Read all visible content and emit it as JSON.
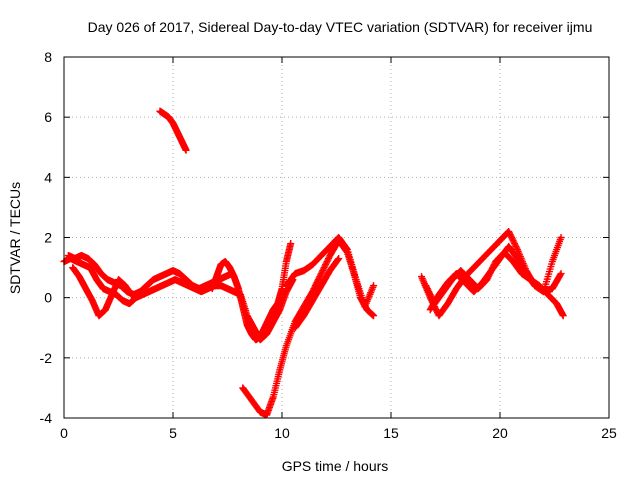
{
  "chart_data": {
    "type": "scatter",
    "title": "Day 026 of 2017, Sidereal Day-to-day VTEC variation (SDTVAR) for receiver ijmu",
    "xlabel": "GPS time / hours",
    "ylabel": "SDTVAR / TECUs",
    "xlim": [
      0,
      25
    ],
    "ylim": [
      -4,
      8
    ],
    "xticks": [
      "0",
      "5",
      "10",
      "15",
      "20",
      "25"
    ],
    "yticks": [
      "-4",
      "-2",
      "0",
      "2",
      "4",
      "6",
      "8"
    ],
    "grid": true,
    "marker": "+",
    "color": "#ff0000",
    "series": [
      {
        "name": "trace-1",
        "x": [
          0.0,
          0.3,
          0.6,
          0.9,
          1.2,
          1.5,
          1.8,
          2.1,
          2.4,
          2.7,
          3.0,
          3.3,
          3.6,
          3.9,
          4.2,
          4.5,
          4.8,
          5.1,
          5.4,
          5.7,
          6.0,
          6.3,
          6.6,
          6.9,
          7.2,
          7.5,
          7.8,
          8.1,
          8.4,
          8.7,
          9.0,
          9.3,
          9.6,
          9.9,
          10.2,
          10.5
        ],
        "y": [
          1.2,
          1.3,
          1.2,
          1.1,
          1.0,
          0.6,
          0.3,
          0.2,
          0.1,
          -0.1,
          -0.2,
          0.0,
          0.1,
          0.2,
          0.3,
          0.4,
          0.5,
          0.6,
          0.5,
          0.4,
          0.3,
          0.2,
          0.3,
          0.4,
          0.4,
          0.3,
          0.2,
          0.1,
          -0.6,
          -1.0,
          -1.4,
          -1.2,
          -0.8,
          -0.4,
          0.2,
          0.6
        ]
      },
      {
        "name": "trace-2",
        "x": [
          0.2,
          0.5,
          0.8,
          1.1,
          1.4,
          1.7,
          2.0,
          2.3,
          2.6,
          2.9,
          3.2,
          3.5,
          3.8,
          4.1,
          4.4,
          4.7,
          5.0,
          5.3,
          5.6,
          5.9,
          6.2,
          6.5,
          6.8,
          7.1,
          7.4,
          7.7
        ],
        "y": [
          1.4,
          1.3,
          1.4,
          1.3,
          1.1,
          0.8,
          0.6,
          0.5,
          0.4,
          0.2,
          0.1,
          0.2,
          0.4,
          0.6,
          0.7,
          0.8,
          0.9,
          0.8,
          0.6,
          0.4,
          0.3,
          0.4,
          0.5,
          0.6,
          0.7,
          0.8
        ]
      },
      {
        "name": "trace-3",
        "x": [
          0.4,
          0.7,
          1.0,
          1.3,
          1.6,
          1.9,
          2.2,
          2.5,
          2.8,
          3.1
        ],
        "y": [
          1.0,
          0.7,
          0.3,
          -0.1,
          -0.6,
          -0.4,
          0.1,
          0.6,
          0.4,
          0.1
        ]
      },
      {
        "name": "trace-4",
        "x": [
          4.4,
          4.6,
          4.8,
          5.0,
          5.2,
          5.4,
          5.6
        ],
        "y": [
          6.2,
          6.1,
          6.0,
          5.8,
          5.5,
          5.2,
          4.9
        ]
      },
      {
        "name": "trace-5",
        "x": [
          6.8,
          7.0,
          7.2,
          7.4,
          7.6,
          7.8,
          8.0,
          8.2,
          8.4,
          8.6,
          8.8,
          9.0,
          9.2,
          9.4,
          9.6,
          9.8,
          10.0,
          10.2,
          10.4
        ],
        "y": [
          0.3,
          0.7,
          1.1,
          1.2,
          1.0,
          0.7,
          0.3,
          -0.3,
          -0.9,
          -1.2,
          -1.4,
          -1.3,
          -1.0,
          -0.7,
          -0.4,
          -0.2,
          0.3,
          1.2,
          1.8
        ]
      },
      {
        "name": "trace-6",
        "x": [
          8.2,
          8.6,
          9.0,
          9.3,
          9.6,
          9.9,
          10.2,
          10.6,
          11.0,
          11.4,
          11.8,
          12.2,
          12.6,
          13.0,
          13.3,
          13.6,
          13.9,
          14.2
        ],
        "y": [
          -3.0,
          -3.4,
          -3.8,
          -3.9,
          -3.3,
          -2.4,
          -1.6,
          -0.8,
          -0.3,
          0.2,
          0.8,
          1.4,
          1.9,
          1.5,
          0.8,
          0.0,
          -0.4,
          -0.6
        ]
      },
      {
        "name": "trace-7",
        "x": [
          10.2,
          10.6,
          11.0,
          11.4,
          11.8,
          12.2,
          12.6,
          13.0,
          13.4,
          13.8,
          14.2
        ],
        "y": [
          0.4,
          0.8,
          0.9,
          1.1,
          1.4,
          1.7,
          2.0,
          1.6,
          0.6,
          -0.3,
          0.4
        ]
      },
      {
        "name": "trace-8",
        "x": [
          10.6,
          11.0,
          11.4,
          11.8,
          12.2,
          12.6
        ],
        "y": [
          -1.0,
          -0.6,
          -0.1,
          0.4,
          0.9,
          1.3
        ]
      },
      {
        "name": "trace-9",
        "x": [
          16.4,
          16.8,
          17.2,
          17.6,
          18.0,
          18.4,
          18.8,
          19.2,
          19.6,
          20.0,
          20.4,
          20.8,
          21.2,
          21.6,
          22.0,
          22.4,
          22.8
        ],
        "y": [
          0.7,
          0.0,
          -0.6,
          -0.2,
          0.3,
          0.7,
          1.0,
          1.3,
          1.6,
          1.9,
          2.2,
          1.6,
          0.9,
          0.4,
          0.2,
          0.3,
          0.8
        ]
      },
      {
        "name": "trace-10",
        "x": [
          16.6,
          17.0,
          17.4,
          17.8,
          18.2,
          18.6,
          19.0,
          19.4,
          19.8,
          20.2,
          20.6,
          21.0,
          21.4,
          21.8,
          22.2,
          22.6,
          22.9
        ],
        "y": [
          0.4,
          -0.2,
          0.2,
          0.6,
          0.9,
          0.6,
          0.3,
          0.6,
          1.2,
          1.5,
          1.2,
          0.8,
          0.6,
          0.4,
          0.1,
          -0.2,
          -0.6
        ]
      },
      {
        "name": "trace-11",
        "x": [
          16.8,
          17.2,
          17.6,
          18.0,
          18.4,
          18.8,
          19.2,
          19.6,
          20.0,
          20.4,
          20.8,
          21.2,
          21.6,
          22.0,
          22.4,
          22.8
        ],
        "y": [
          -0.4,
          0.1,
          0.5,
          0.8,
          0.5,
          0.2,
          0.5,
          0.9,
          1.3,
          1.7,
          1.3,
          0.8,
          0.4,
          0.2,
          1.2,
          2.0
        ]
      }
    ]
  }
}
